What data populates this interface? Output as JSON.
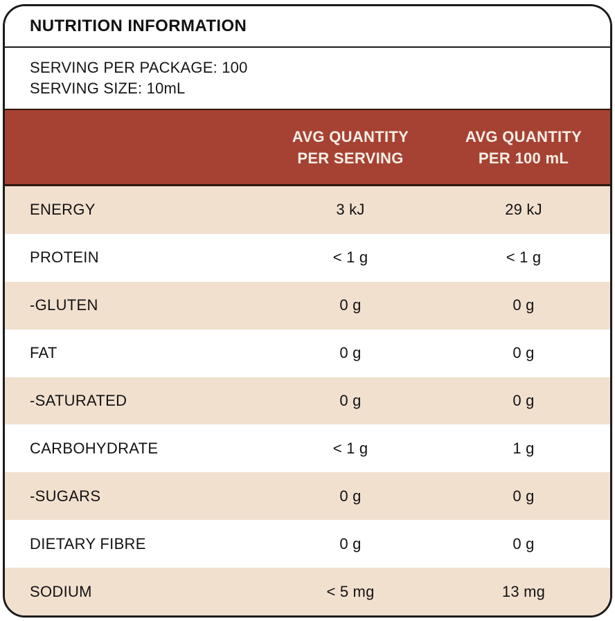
{
  "colors": {
    "header_bg": "#a64233",
    "row_alt_bg": "#f2e0cf",
    "border_ink": "#1b1b1b",
    "header_text": "#f7efe7"
  },
  "title": "NUTRITION INFORMATION",
  "serving_info": {
    "line1": "SERVING PER PACKAGE: 100",
    "line2": "SERVING SIZE: 10mL"
  },
  "table": {
    "columns": [
      {
        "line1": "AVG QUANTITY",
        "line2": "PER SERVING"
      },
      {
        "line1": "AVG QUANTITY",
        "line2": "PER 100 mL"
      }
    ],
    "rows": [
      {
        "nutrient": "ENERGY",
        "per_serving": "3 kJ",
        "per_100ml": "29 kJ"
      },
      {
        "nutrient": "PROTEIN",
        "per_serving": "< 1 g",
        "per_100ml": "< 1 g"
      },
      {
        "nutrient": "-GLUTEN",
        "per_serving": "0 g",
        "per_100ml": "0 g"
      },
      {
        "nutrient": "FAT",
        "per_serving": "0 g",
        "per_100ml": "0 g"
      },
      {
        "nutrient": "-SATURATED",
        "per_serving": "0 g",
        "per_100ml": "0 g"
      },
      {
        "nutrient": "CARBOHYDRATE",
        "per_serving": "< 1 g",
        "per_100ml": "1 g"
      },
      {
        "nutrient": "-SUGARS",
        "per_serving": "0 g",
        "per_100ml": "0 g"
      },
      {
        "nutrient": "DIETARY FIBRE",
        "per_serving": "0 g",
        "per_100ml": "0 g"
      },
      {
        "nutrient": "SODIUM",
        "per_serving": "< 5 mg",
        "per_100ml": "13 mg"
      }
    ]
  }
}
